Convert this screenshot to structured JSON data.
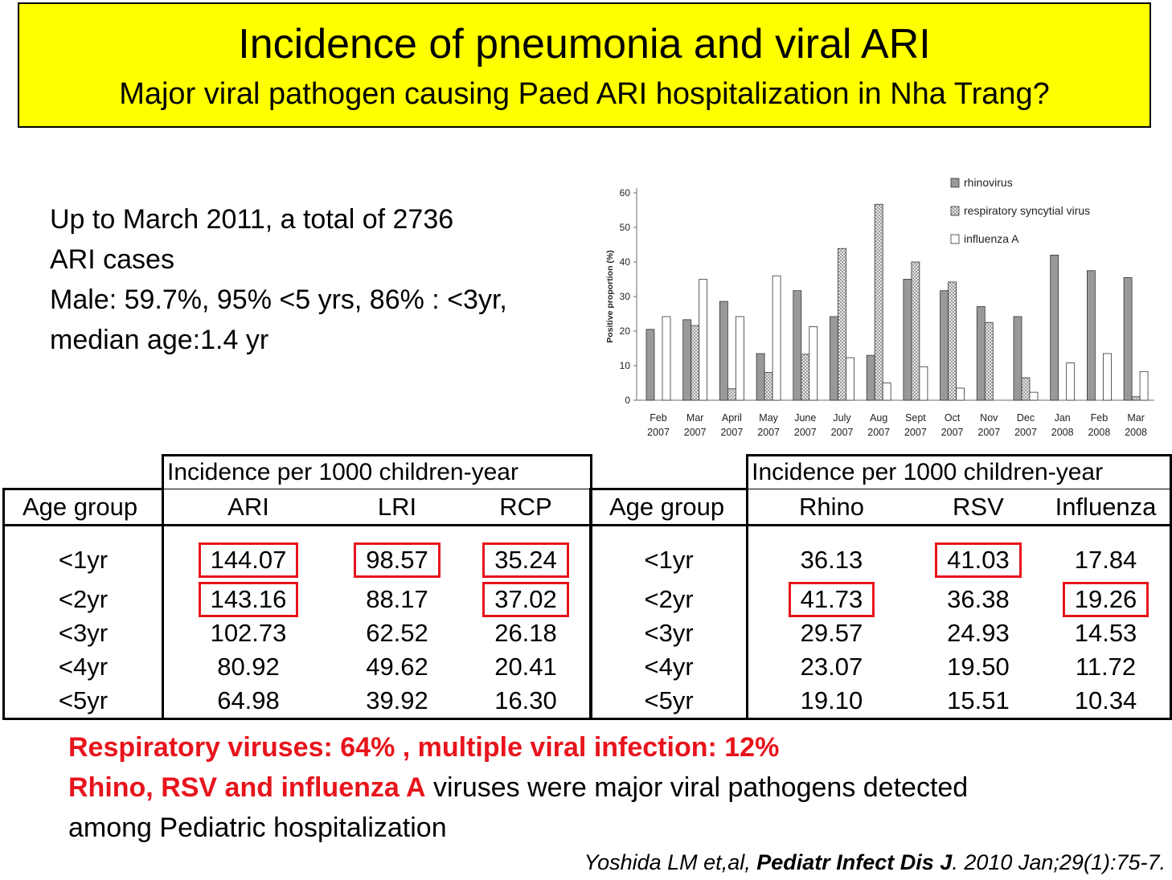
{
  "title": {
    "line1": "Incidence of pneumonia and viral ARI",
    "line2": "Major viral pathogen causing Paed ARI hospitalization in Nha Trang?"
  },
  "summary": [
    "Up to March 2011, a total of 2736",
    "ARI cases",
    "Male: 59.7%, 95% <5 yrs, 86% : <3yr,",
    "median age:1.4 yr"
  ],
  "chart_data": {
    "type": "bar",
    "ylabel": "Positive proportion (%)",
    "ylim": [
      0,
      60
    ],
    "yticks": [
      0,
      10,
      20,
      30,
      40,
      50,
      60
    ],
    "legend_position": "top-right",
    "categories": [
      [
        "Feb",
        "2007"
      ],
      [
        "Mar",
        "2007"
      ],
      [
        "April",
        "2007"
      ],
      [
        "May",
        "2007"
      ],
      [
        "June",
        "2007"
      ],
      [
        "July",
        "2007"
      ],
      [
        "Aug",
        "2007"
      ],
      [
        "Sept",
        "2007"
      ],
      [
        "Oct",
        "2007"
      ],
      [
        "Nov",
        "2007"
      ],
      [
        "Dec",
        "2007"
      ],
      [
        "Jan",
        "2008"
      ],
      [
        "Feb",
        "2008"
      ],
      [
        "Mar",
        "2008"
      ]
    ],
    "series": [
      {
        "name": "rhinovirus",
        "fill": "gray",
        "values": [
          20.5,
          23.3,
          28.6,
          13.5,
          31.7,
          24.2,
          13.0,
          35.0,
          31.7,
          27.1,
          24.2,
          42.0,
          37.5,
          35.5
        ]
      },
      {
        "name": "respiratory syncytial virus",
        "fill": "hatched",
        "values": [
          0,
          21.6,
          3.3,
          8.0,
          13.3,
          43.9,
          56.7,
          40.0,
          34.2,
          22.5,
          6.5,
          0,
          0,
          1.0
        ]
      },
      {
        "name": "influenza A",
        "fill": "white",
        "values": [
          24.2,
          35.0,
          24.2,
          36.0,
          21.3,
          12.3,
          5.0,
          9.7,
          3.5,
          0,
          2.3,
          10.8,
          13.5,
          8.3
        ]
      }
    ],
    "colors": {
      "rhinovirus": "#999999",
      "rsv_hatch": "#8c8c8c",
      "influenza": "#ffffff",
      "axis": "#6e6e6e"
    }
  },
  "table_left": {
    "header_top": "Incidence per 1000 children-year",
    "columns": [
      "Age group",
      "ARI",
      "LRI",
      "RCP"
    ],
    "rows": [
      {
        "age": "<1yr",
        "values": [
          "144.07",
          "98.57",
          "35.24"
        ],
        "highlight": [
          true,
          true,
          true
        ]
      },
      {
        "age": "<2yr",
        "values": [
          "143.16",
          "88.17",
          "37.02"
        ],
        "highlight": [
          true,
          false,
          true
        ]
      },
      {
        "age": "<3yr",
        "values": [
          "102.73",
          "62.52",
          "26.18"
        ],
        "highlight": [
          false,
          false,
          false
        ]
      },
      {
        "age": "<4yr",
        "values": [
          "80.92",
          "49.62",
          "20.41"
        ],
        "highlight": [
          false,
          false,
          false
        ]
      },
      {
        "age": "<5yr",
        "values": [
          "64.98",
          "39.92",
          "16.30"
        ],
        "highlight": [
          false,
          false,
          false
        ]
      }
    ]
  },
  "table_right": {
    "header_top": "Incidence per 1000 children-year",
    "columns": [
      "Age group",
      "Rhino",
      "RSV",
      "Influenza"
    ],
    "rows": [
      {
        "age": "<1yr",
        "values": [
          "36.13",
          "41.03",
          "17.84"
        ],
        "highlight": [
          false,
          true,
          false
        ]
      },
      {
        "age": "<2yr",
        "values": [
          "41.73",
          "36.38",
          "19.26"
        ],
        "highlight": [
          true,
          false,
          true
        ]
      },
      {
        "age": "<3yr",
        "values": [
          "29.57",
          "24.93",
          "14.53"
        ],
        "highlight": [
          false,
          false,
          false
        ]
      },
      {
        "age": "<4yr",
        "values": [
          "23.07",
          "19.50",
          "11.72"
        ],
        "highlight": [
          false,
          false,
          false
        ]
      },
      {
        "age": "<5yr",
        "values": [
          "19.10",
          "15.51",
          "10.34"
        ],
        "highlight": [
          false,
          false,
          false
        ]
      }
    ]
  },
  "findings": {
    "line1": "Respiratory viruses: 64% , multiple viral infection: 12%",
    "line2_red": "Rhino, RSV and influenza A",
    "line2_rest": " viruses were major viral pathogens detected",
    "line3": "among Pediatric hospitalization"
  },
  "citation": {
    "authors": "Yoshida LM et,al, ",
    "journal": "Pediatr Infect Dis J",
    "rest": ". 2010 Jan;29(1):75-7."
  },
  "highlight_color": "#e8141c"
}
